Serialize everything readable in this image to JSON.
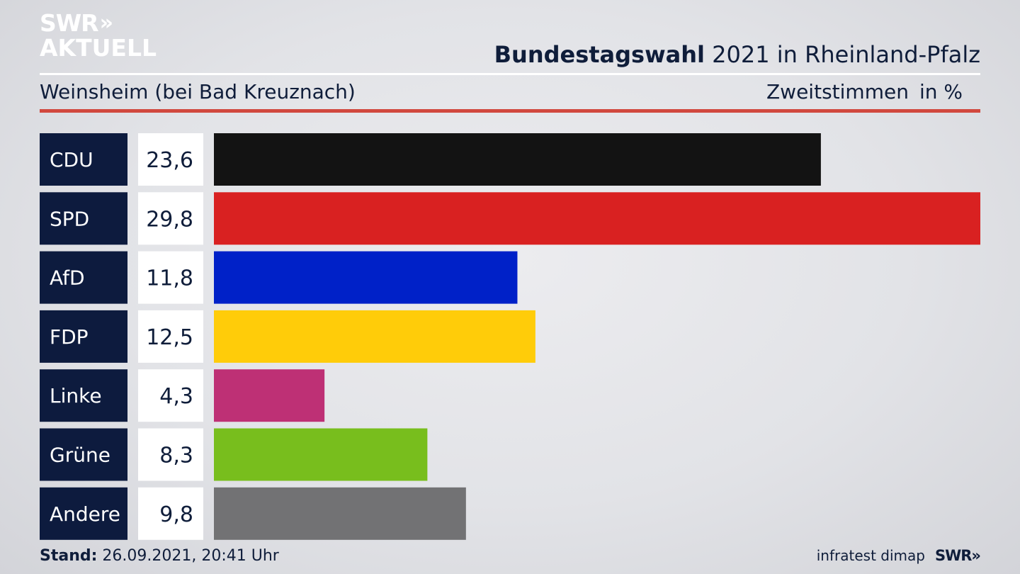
{
  "logo": {
    "line1": "SWR",
    "chevrons": "»",
    "line2": "AKTUELL"
  },
  "header": {
    "title_bold": "Bundestagswahl",
    "title_rest": " 2021 in Rheinland-Pfalz",
    "subtitle": "Weinsheim (bei Bad Kreuznach)",
    "measure": "Zweitstimmen",
    "unit": "in %"
  },
  "chart_data": {
    "type": "bar",
    "orientation": "horizontal",
    "title": "Bundestagswahl 2021 in Rheinland-Pfalz",
    "subtitle": "Weinsheim (bei Bad Kreuznach)",
    "categories": [
      "CDU",
      "SPD",
      "AfD",
      "FDP",
      "Linke",
      "Grüne",
      "Andere"
    ],
    "values": [
      23.6,
      29.8,
      11.8,
      12.5,
      4.3,
      8.3,
      9.8
    ],
    "value_labels": [
      "23,6",
      "29,8",
      "11,8",
      "12,5",
      "4,3",
      "8,3",
      "9,8"
    ],
    "colors": [
      "#131313",
      "#d92121",
      "#0021c8",
      "#ffcc09",
      "#be3075",
      "#78be1d",
      "#727274"
    ],
    "xlim": [
      0,
      29.8
    ],
    "grid": false,
    "legend": "none"
  },
  "footer": {
    "stand_label": "Stand:",
    "stand_value": " 26.09.2021, 20:41 Uhr",
    "source": "infratest dimap",
    "brand": "SWR",
    "brand_chevrons": "»"
  }
}
